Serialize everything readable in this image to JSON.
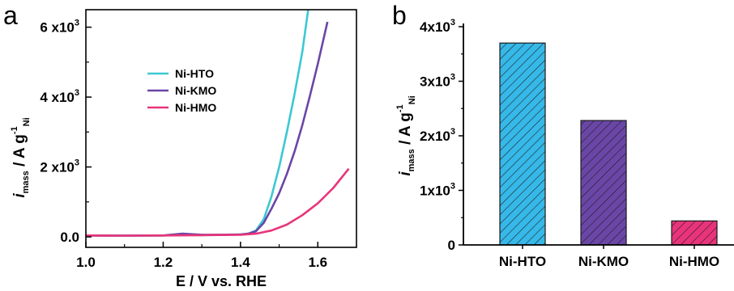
{
  "chart_data": [
    {
      "panel_label": "a",
      "type": "line",
      "xlabel": "E / V vs. RHE",
      "ylabel": {
        "main": "i",
        "main_sub": "mass",
        "unit": " / A g",
        "unit_sup": "-1",
        "unit_sub": "Ni"
      },
      "xlim": [
        1.0,
        1.7
      ],
      "ylim": [
        -300,
        6500
      ],
      "x_ticks": [
        1.0,
        1.2,
        1.4,
        1.6
      ],
      "x_tick_labels": [
        "1.0",
        "1.2",
        "1.4",
        "1.6"
      ],
      "y_ticks": [
        0,
        2000,
        4000,
        6000
      ],
      "y_tick_labels": [
        {
          "base": "0.0",
          "sup": ""
        },
        {
          "base": "2 x10",
          "sup": "3"
        },
        {
          "base": "4 x10",
          "sup": "3"
        },
        {
          "base": "6 x10",
          "sup": "3"
        }
      ],
      "legend_position": "upper-left",
      "series": [
        {
          "name": "Ni-HTO",
          "color": "#3cc8d2",
          "x": [
            1.0,
            1.1,
            1.2,
            1.25,
            1.3,
            1.35,
            1.4,
            1.42,
            1.44,
            1.46,
            1.48,
            1.5,
            1.52,
            1.54,
            1.56,
            1.575
          ],
          "y": [
            40,
            35,
            40,
            60,
            50,
            55,
            70,
            90,
            180,
            500,
            1150,
            2000,
            3000,
            4100,
            5300,
            6500
          ]
        },
        {
          "name": "Ni-KMO",
          "color": "#6a46a6",
          "x": [
            1.0,
            1.1,
            1.2,
            1.25,
            1.3,
            1.35,
            1.4,
            1.42,
            1.44,
            1.46,
            1.48,
            1.5,
            1.52,
            1.54,
            1.56,
            1.58,
            1.6,
            1.625
          ],
          "y": [
            40,
            35,
            40,
            90,
            60,
            60,
            70,
            90,
            160,
            400,
            800,
            1250,
            1800,
            2450,
            3200,
            4050,
            4950,
            6150
          ]
        },
        {
          "name": "Ni-HMO",
          "color": "#e8347a",
          "x": [
            1.0,
            1.1,
            1.2,
            1.3,
            1.4,
            1.44,
            1.48,
            1.52,
            1.56,
            1.6,
            1.64,
            1.68
          ],
          "y": [
            40,
            35,
            40,
            50,
            60,
            90,
            180,
            350,
            620,
            960,
            1400,
            1950
          ]
        }
      ]
    },
    {
      "panel_label": "b",
      "type": "bar",
      "categories": [
        "Ni-HTO",
        "Ni-KMO",
        "Ni-HMO"
      ],
      "values": [
        3700,
        2280,
        440
      ],
      "colors": [
        "#36b8e8",
        "#6a46a6",
        "#e8347a"
      ],
      "bar_pattern": "diagonal hatch",
      "ylabel": {
        "main": "i",
        "main_sub": "mass",
        "unit": " / A g",
        "unit_sup": "-1",
        "unit_sub": "Ni"
      },
      "ylim": [
        0,
        4000
      ],
      "y_ticks": [
        0,
        1000,
        2000,
        3000,
        4000
      ],
      "y_tick_labels": [
        {
          "base": "0",
          "sup": ""
        },
        {
          "base": "1x10",
          "sup": "3"
        },
        {
          "base": "2x10",
          "sup": "3"
        },
        {
          "base": "3x10",
          "sup": "3"
        },
        {
          "base": "4x10",
          "sup": "3"
        }
      ]
    }
  ]
}
